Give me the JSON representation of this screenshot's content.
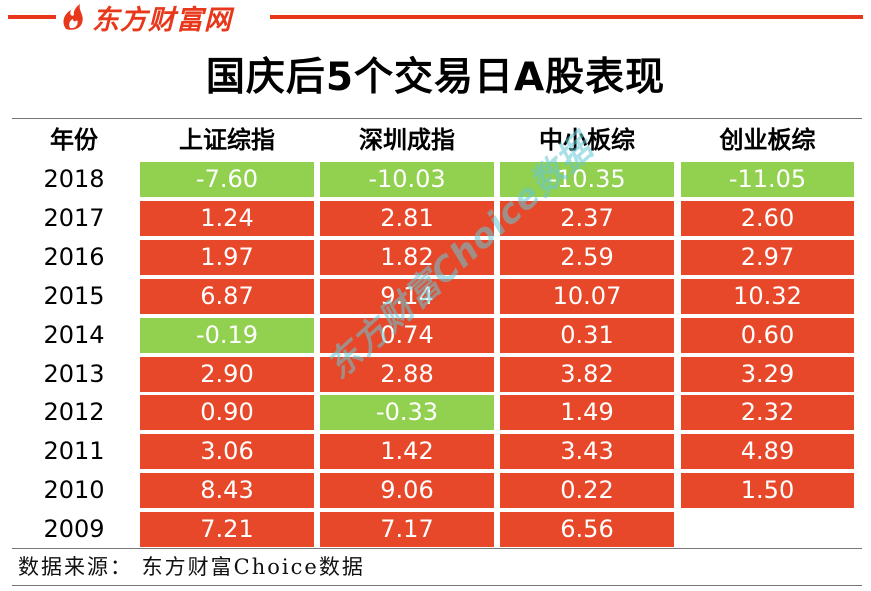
{
  "brand": {
    "name": "东方财富网",
    "color": "#e8381b",
    "icon": "flame-logo-icon"
  },
  "title": "国庆后5个交易日A股表现",
  "table": {
    "headers": [
      "年份",
      "上证综指",
      "深圳成指",
      "中小板综",
      "创业板综"
    ],
    "rows": [
      {
        "year": "2018",
        "values": [
          "-7.60",
          "-10.03",
          "-10.35",
          "-11.05"
        ]
      },
      {
        "year": "2017",
        "values": [
          "1.24",
          "2.81",
          "2.37",
          "2.60"
        ]
      },
      {
        "year": "2016",
        "values": [
          "1.97",
          "1.82",
          "2.59",
          "2.97"
        ]
      },
      {
        "year": "2015",
        "values": [
          "6.87",
          "9.14",
          "10.07",
          "10.32"
        ]
      },
      {
        "year": "2014",
        "values": [
          "-0.19",
          "0.74",
          "0.31",
          "0.60"
        ]
      },
      {
        "year": "2013",
        "values": [
          "2.90",
          "2.88",
          "3.82",
          "3.29"
        ]
      },
      {
        "year": "2012",
        "values": [
          "0.90",
          "-0.33",
          "1.49",
          "2.32"
        ]
      },
      {
        "year": "2011",
        "values": [
          "3.06",
          "1.42",
          "3.43",
          "4.89"
        ]
      },
      {
        "year": "2010",
        "values": [
          "8.43",
          "9.06",
          "0.22",
          "1.50"
        ]
      },
      {
        "year": "2009",
        "values": [
          "7.21",
          "7.17",
          "6.56",
          ""
        ]
      }
    ],
    "colors": {
      "positive": "#e8482a",
      "negative": "#92d050"
    }
  },
  "watermark": "东方财富Choice数据",
  "source": "数据来源：  东方财富Choice数据"
}
